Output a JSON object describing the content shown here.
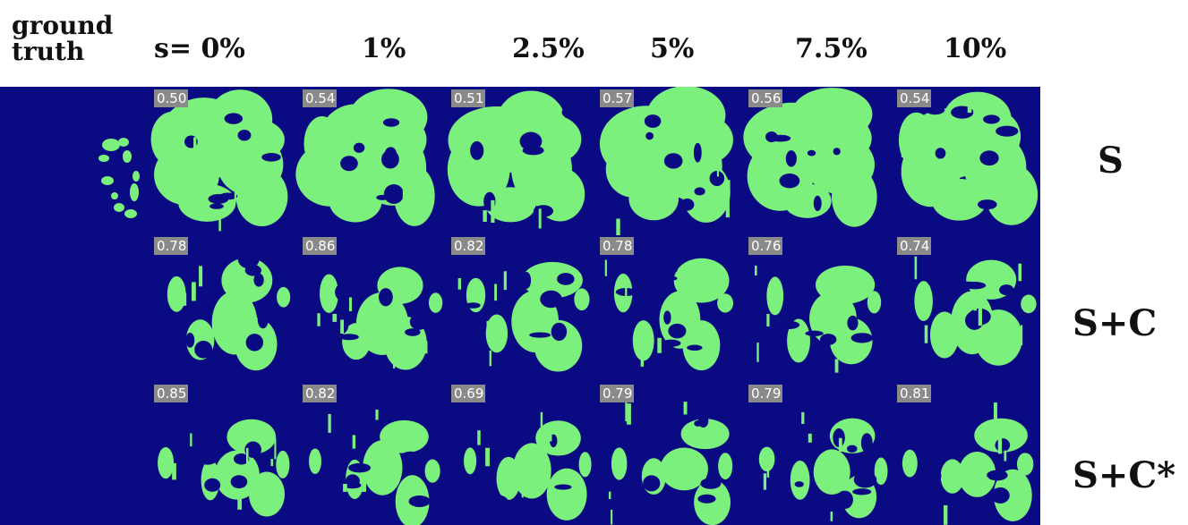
{
  "header": {
    "ground_truth_line1": "ground",
    "ground_truth_line2": "truth",
    "columns": [
      "s= 0%",
      "1%",
      "2.5%",
      "5%",
      "7.5%",
      "10%"
    ]
  },
  "rows": [
    {
      "label": "S",
      "scores": [
        "0.50",
        "0.54",
        "0.51",
        "0.57",
        "0.56",
        "0.54"
      ]
    },
    {
      "label": "S+C",
      "scores": [
        "0.78",
        "0.86",
        "0.82",
        "0.78",
        "0.76",
        "0.74"
      ]
    },
    {
      "label": "S+C*",
      "scores": [
        "0.85",
        "0.82",
        "0.69",
        "0.79",
        "0.79",
        "0.81"
      ]
    }
  ],
  "colors": {
    "background": "#0a0a82",
    "mask": "#7cf07c",
    "badge": "#8a8a8a",
    "badge_text": "#ffffff"
  }
}
